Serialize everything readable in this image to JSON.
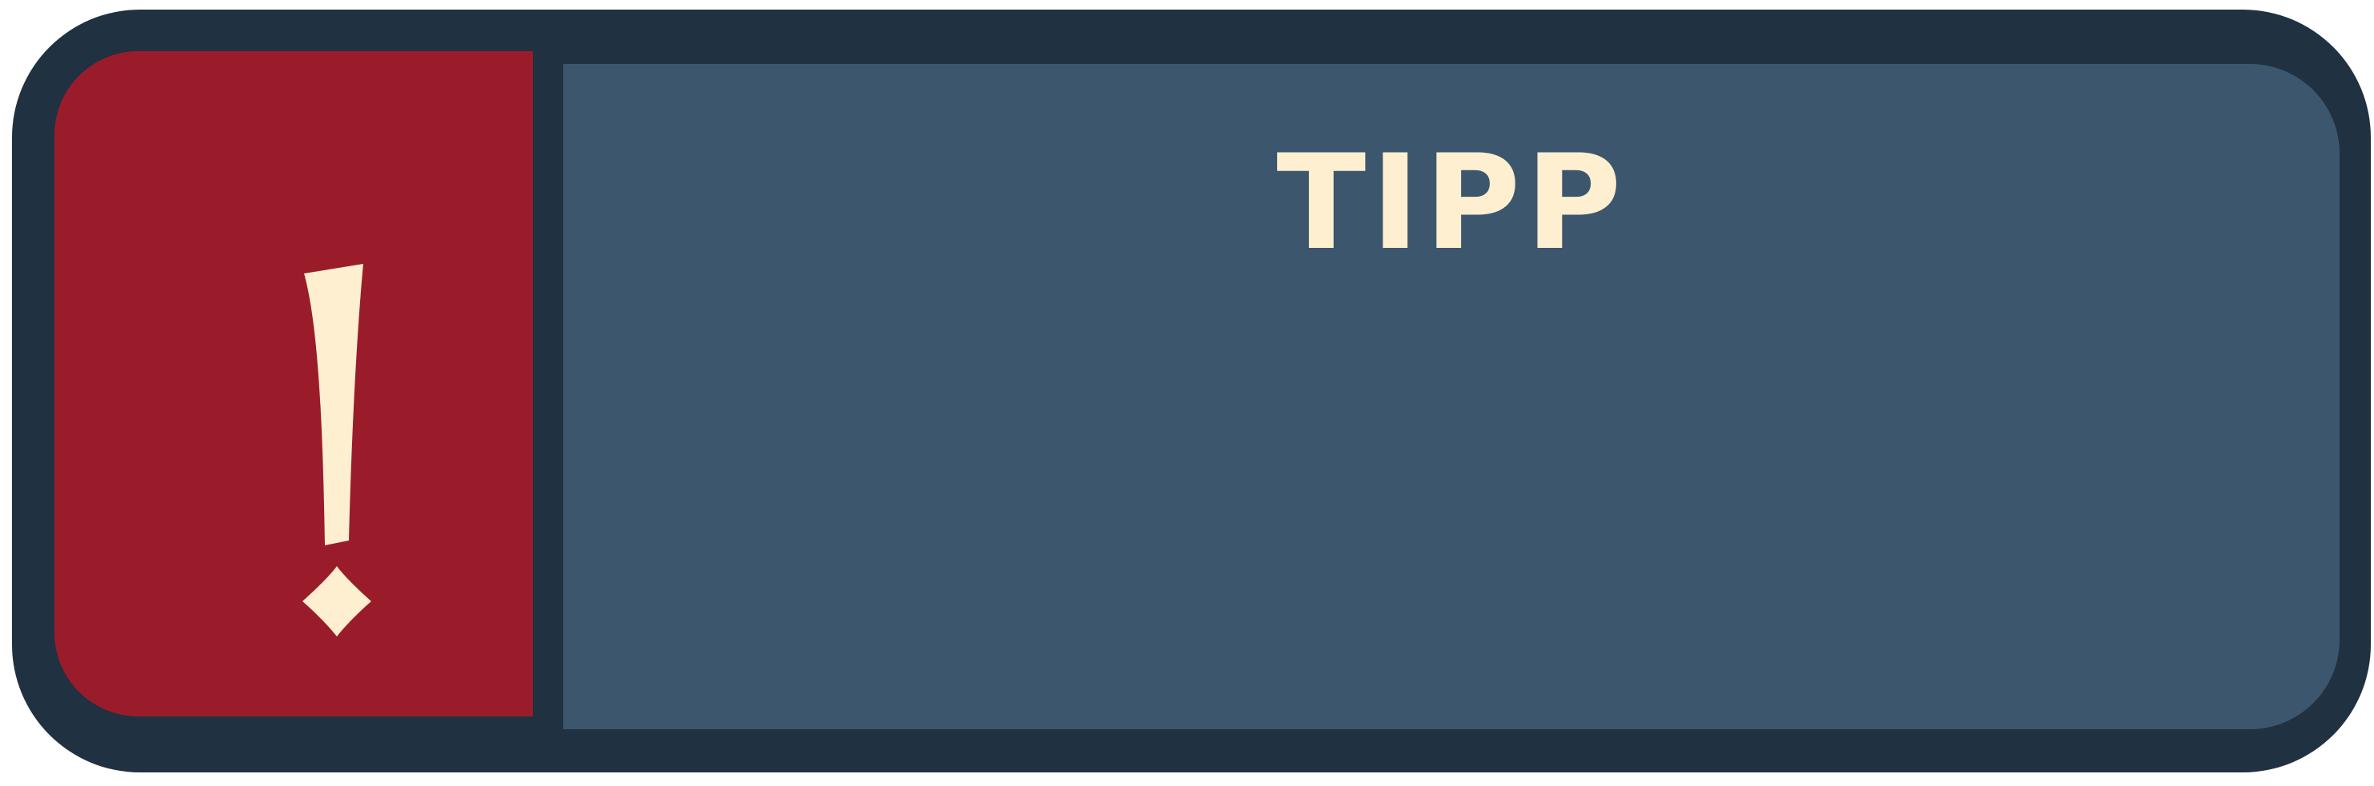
{
  "callout": {
    "title": "TIPP",
    "icon": "exclamation-icon"
  },
  "colors": {
    "frame": "#203141",
    "icon_panel": "#9a1c2b",
    "content_panel": "#3c576d",
    "text": "#fdefcf"
  }
}
